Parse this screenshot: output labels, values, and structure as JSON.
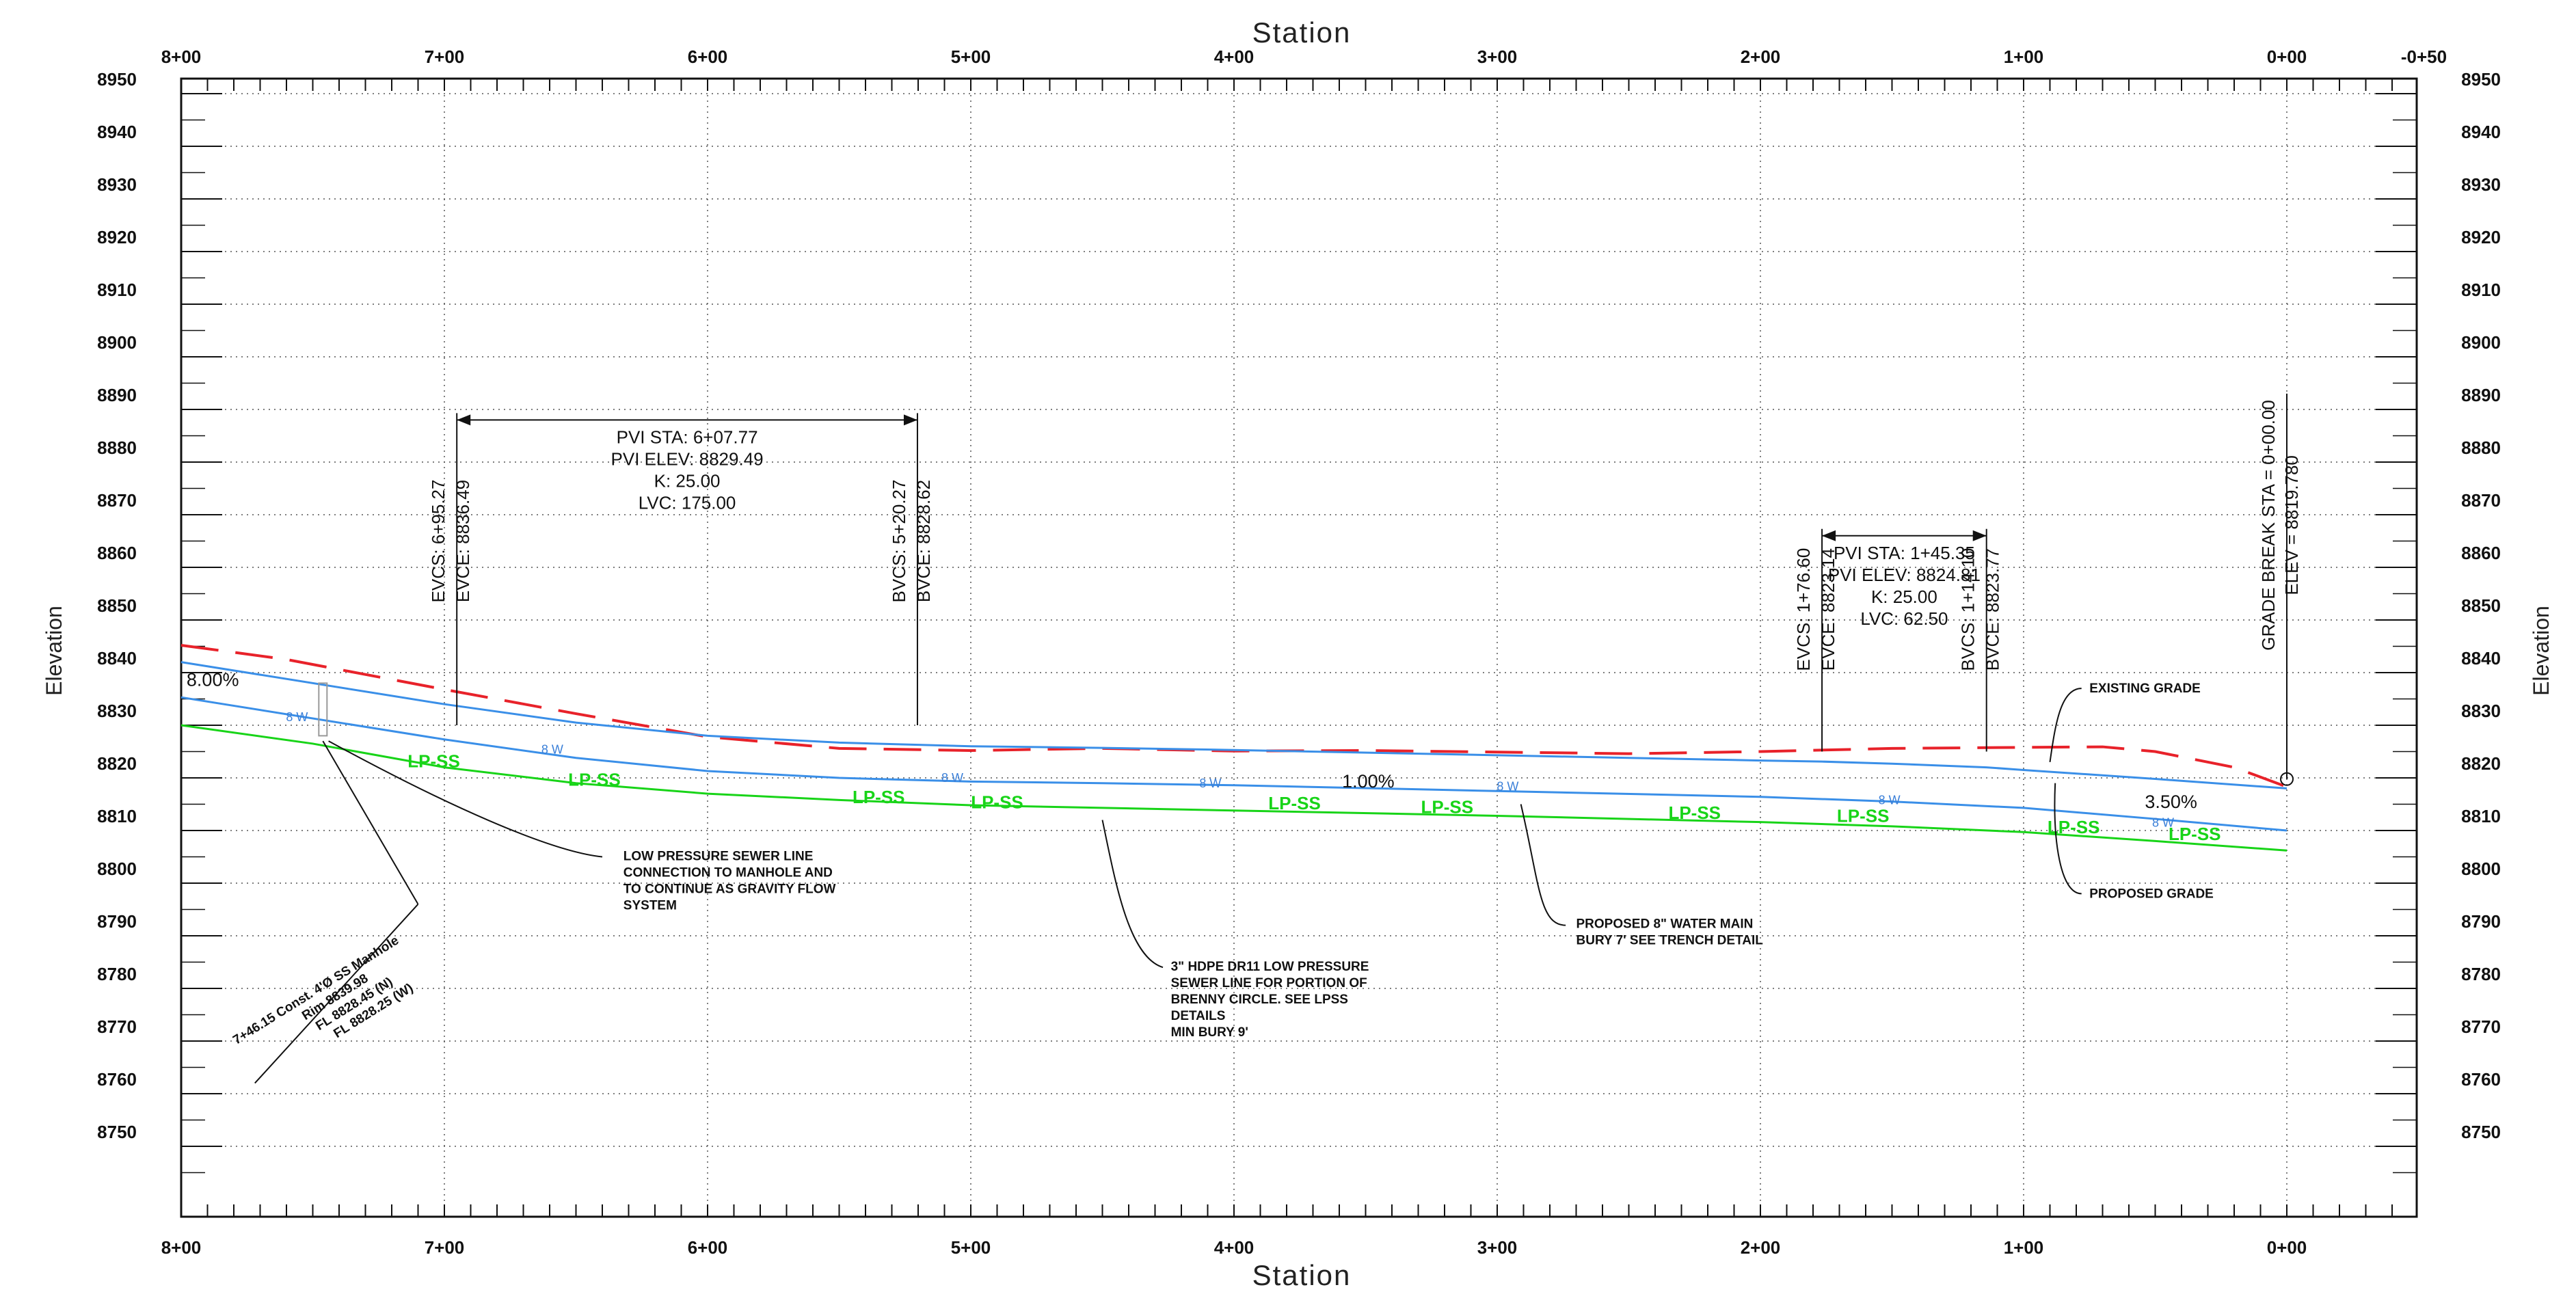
{
  "chart_data": {
    "type": "line",
    "title": "",
    "xlabel": "Station",
    "ylabel": "Elevation",
    "x_reversed": true,
    "xlim": [
      -50,
      800
    ],
    "ylim": [
      8737,
      8950
    ],
    "grid": true,
    "x_ticks": [
      {
        "value": 800,
        "label": "8+00"
      },
      {
        "value": 700,
        "label": "7+00"
      },
      {
        "value": 600,
        "label": "6+00"
      },
      {
        "value": 500,
        "label": "5+00"
      },
      {
        "value": 400,
        "label": "4+00"
      },
      {
        "value": 300,
        "label": "3+00"
      },
      {
        "value": 200,
        "label": "2+00"
      },
      {
        "value": 100,
        "label": "1+00"
      },
      {
        "value": 0,
        "label": "0+00"
      }
    ],
    "x_top_extra_tick": {
      "value": -50,
      "label": "-0+50"
    },
    "y_ticks": [
      8950,
      8940,
      8930,
      8920,
      8910,
      8900,
      8890,
      8880,
      8870,
      8860,
      8850,
      8840,
      8830,
      8820,
      8810,
      8800,
      8790,
      8780,
      8770,
      8760,
      8750
    ],
    "series": [
      {
        "key": "existing",
        "color": "#e8222a",
        "dashed": true,
        "points": [
          [
            800,
            8845.2
          ],
          [
            760,
            8842.5
          ],
          [
            700,
            8836.8
          ],
          [
            650,
            8832.2
          ],
          [
            600,
            8827.8
          ],
          [
            550,
            8825.6
          ],
          [
            500,
            8825.2
          ],
          [
            450,
            8825.6
          ],
          [
            400,
            8825.1
          ],
          [
            350,
            8825.2
          ],
          [
            300,
            8824.9
          ],
          [
            250,
            8824.6
          ],
          [
            200,
            8825.0
          ],
          [
            150,
            8825.6
          ],
          [
            100,
            8825.8
          ],
          [
            70,
            8825.9
          ],
          [
            50,
            8825.0
          ],
          [
            20,
            8822.0
          ],
          [
            0,
            8818.3
          ]
        ]
      },
      {
        "key": "proposed",
        "color": "#3a8fe8",
        "dashed": false,
        "points": [
          [
            800,
            8842.0
          ],
          [
            700,
            8834.0
          ],
          [
            650,
            8830.5
          ],
          [
            600,
            8828.0
          ],
          [
            550,
            8826.7
          ],
          [
            500,
            8826.0
          ],
          [
            450,
            8825.7
          ],
          [
            400,
            8825.3
          ],
          [
            300,
            8824.3
          ],
          [
            250,
            8823.8
          ],
          [
            200,
            8823.3
          ],
          [
            176.6,
            8823.1
          ],
          [
            150,
            8822.7
          ],
          [
            114.1,
            8822.0
          ],
          [
            100,
            8821.5
          ],
          [
            50,
            8819.8
          ],
          [
            0,
            8818.0
          ]
        ]
      },
      {
        "key": "water-main",
        "color": "#3a8fe8",
        "dashed": false,
        "points": [
          [
            800,
            8835.3
          ],
          [
            700,
            8827.3
          ],
          [
            650,
            8823.8
          ],
          [
            600,
            8821.3
          ],
          [
            550,
            8820.0
          ],
          [
            500,
            8819.3
          ],
          [
            450,
            8819.0
          ],
          [
            400,
            8818.6
          ],
          [
            300,
            8817.5
          ],
          [
            200,
            8816.4
          ],
          [
            150,
            8815.5
          ],
          [
            100,
            8814.3
          ],
          [
            50,
            8812.2
          ],
          [
            0,
            8810.0
          ]
        ]
      },
      {
        "key": "lpss",
        "color": "#18d418",
        "dashed": false,
        "points": [
          [
            800,
            8830.0
          ],
          [
            750,
            8826.5
          ],
          [
            700,
            8822.0
          ],
          [
            650,
            8819.0
          ],
          [
            600,
            8817.0
          ],
          [
            550,
            8815.8
          ],
          [
            500,
            8814.8
          ],
          [
            400,
            8813.8
          ],
          [
            300,
            8812.8
          ],
          [
            200,
            8811.6
          ],
          [
            150,
            8810.8
          ],
          [
            100,
            8809.7
          ],
          [
            50,
            8808.0
          ],
          [
            0,
            8806.2
          ]
        ]
      }
    ],
    "lpss_labels": [
      [
        704,
        8822.0
      ],
      [
        643,
        8818.5
      ],
      [
        535,
        8815.2
      ],
      [
        490,
        8814.2
      ],
      [
        377,
        8814.0
      ],
      [
        319,
        8813.3
      ],
      [
        225,
        8812.2
      ],
      [
        161,
        8811.6
      ],
      [
        81,
        8809.5
      ],
      [
        35,
        8808.2
      ]
    ],
    "water_labels": [
      [
        756,
        8830.8
      ],
      [
        659,
        8824.6
      ],
      [
        507,
        8819.2
      ],
      [
        409,
        8818.2
      ],
      [
        296,
        8817.6
      ],
      [
        151,
        8815.0
      ],
      [
        47,
        8810.7
      ]
    ],
    "grade_labels": [
      {
        "text": "8.00%",
        "sta": 788,
        "elev": 8837.5
      },
      {
        "text": "1.00%",
        "sta": 349,
        "elev": 8818.2
      },
      {
        "text": "3.50%",
        "sta": 44,
        "elev": 8814.3
      }
    ],
    "vertical_curves": [
      {
        "pvi": [
          "PVI STA: 6+07.77",
          "PVI ELEV: 8829.49",
          "K: 25.00",
          "LVC: 175.00"
        ],
        "ev_sta": 695.27,
        "bv_sta": 520.27,
        "ev": [
          "EVCS: 6+95.27",
          "EVCE: 8836.49"
        ],
        "bv": [
          "BVCS: 5+20.27",
          "BVCE: 8828.62"
        ]
      },
      {
        "pvi": [
          "PVI STA: 1+45.35",
          "PVI ELEV: 8824.81",
          "K: 25.00",
          "LVC: 62.50"
        ],
        "ev_sta": 176.6,
        "bv_sta": 114.1,
        "ev": [
          "EVCS: 1+76.60",
          "EVCE: 8823.14"
        ],
        "bv": [
          "BVCS: 1+14.10",
          "BVCE: 8823.77"
        ]
      }
    ],
    "grade_break": {
      "text": [
        "GRADE BREAK STA = 0+00.00",
        "ELEV = 8819.780"
      ]
    },
    "annotations": {
      "manhole": [
        "7+46.15 Const. 4'Ø SS Manhole",
        "Rim 8839.98",
        "FL 8828.45 (N)",
        "FL 8828.25 (W)"
      ],
      "low_pressure": [
        "LOW PRESSURE SEWER LINE",
        "CONNECTION TO MANHOLE AND",
        "TO CONTINUE AS GRAVITY FLOW",
        "SYSTEM"
      ],
      "hdpe": [
        "3\" HDPE DR11 LOW PRESSURE",
        "SEWER LINE FOR PORTION OF",
        "BRENNY CIRCLE. SEE LPSS",
        "DETAILS",
        "MIN BURY 9'"
      ],
      "water_main": [
        "PROPOSED 8\" WATER MAIN",
        "BURY 7' SEE TRENCH DETAIL"
      ],
      "existing_grade": "EXISTING GRADE",
      "proposed_grade": "PROPOSED GRADE"
    },
    "lpss_text": "LP-SS",
    "water_text": "8 W"
  }
}
